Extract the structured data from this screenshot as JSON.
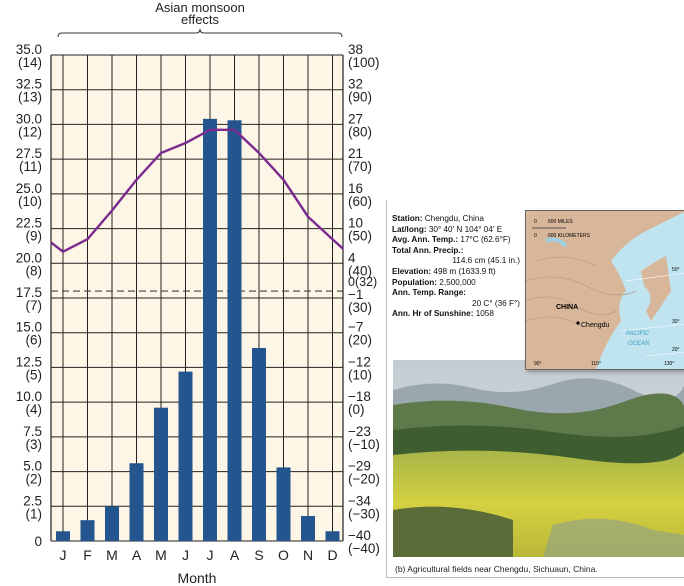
{
  "chart_data": {
    "type": "bar+line",
    "annotation": "Asian monsoon effects",
    "xlabel": "Month",
    "categories": [
      "J",
      "F",
      "M",
      "A",
      "M",
      "J",
      "J",
      "A",
      "S",
      "O",
      "N",
      "D"
    ],
    "precipitation_cm": [
      0.7,
      1.5,
      2.5,
      5.6,
      9.6,
      12.2,
      30.4,
      30.3,
      13.9,
      5.3,
      1.8,
      0.7
    ],
    "temperature_c": [
      6.3,
      8.3,
      12.9,
      17.8,
      22.1,
      23.7,
      25.8,
      25.8,
      22.1,
      17.8,
      11.9,
      8.3
    ],
    "left_axis": {
      "range_cm": [
        0,
        35
      ],
      "ticks": [
        {
          "cm": "0",
          "in": ""
        },
        {
          "cm": "2.5",
          "in": "(1)"
        },
        {
          "cm": "5.0",
          "in": "(2)"
        },
        {
          "cm": "7.5",
          "in": "(3)"
        },
        {
          "cm": "10.0",
          "in": "(4)"
        },
        {
          "cm": "12.5",
          "in": "(5)"
        },
        {
          "cm": "15.0",
          "in": "(6)"
        },
        {
          "cm": "17.5",
          "in": "(7)"
        },
        {
          "cm": "20.0",
          "in": "(8)"
        },
        {
          "cm": "22.5",
          "in": "(9)"
        },
        {
          "cm": "25.0",
          "in": "(10)"
        },
        {
          "cm": "27.5",
          "in": "(11)"
        },
        {
          "cm": "30.0",
          "in": "(12)"
        },
        {
          "cm": "32.5",
          "in": "(13)"
        },
        {
          "cm": "35.0",
          "in": "(14)"
        }
      ]
    },
    "right_axis": {
      "range_f": [
        -40,
        100
      ],
      "ticks": [
        {
          "c": "−40",
          "f": "(−40)"
        },
        {
          "c": "−34",
          "f": "(−30)"
        },
        {
          "c": "−29",
          "f": "(−20)"
        },
        {
          "c": "−23",
          "f": "(−10)"
        },
        {
          "c": "−18",
          "f": "(0)"
        },
        {
          "c": "−12",
          "f": "(10)"
        },
        {
          "c": "−7",
          "f": "(20)"
        },
        {
          "c": "−1",
          "f": "(30)"
        },
        {
          "c": "4",
          "f": "(40)"
        },
        {
          "c": "10",
          "f": "(50)"
        },
        {
          "c": "16",
          "f": "(60)"
        },
        {
          "c": "21",
          "f": "(70)"
        },
        {
          "c": "27",
          "f": "(80)"
        },
        {
          "c": "32",
          "f": "(90)"
        },
        {
          "c": "38",
          "f": "(100)"
        }
      ],
      "freezing_label": "0(32)"
    },
    "colors": {
      "bars": "#25558f",
      "temperature_line": "#7b2a8e",
      "plot_bg": "#fdf5e6",
      "grid": "#222222"
    }
  },
  "station": {
    "station_label": "Station:",
    "station": " Chengdu, China",
    "latlong_label": "Lat/long:",
    "latlong": " 30° 40′ N 104° 04′ E",
    "avgtemp_label": "Avg. Ann. Temp.:",
    "avgtemp": " 17°C (62.6°F)",
    "precip_label": "Total Ann. Precip.:",
    "precip": "114.6 cm (45.1 in.)",
    "elev_label": "Elevation:",
    "elev": " 498 m (1633.9 ft)",
    "pop_label": "Population:",
    "pop": " 2,500,000",
    "range_label": "Ann. Temp. Range:",
    "range": "20 C° (36 F°)",
    "sun_label": "Ann. Hr of Sunshine:",
    "sun": " 1058"
  },
  "map": {
    "scale_miles": "600 MILES",
    "scale_km": "600 KILOMETERS",
    "zero": "0",
    "country": "CHINA",
    "city": "Chengdu",
    "ocean1": "PACIFIC",
    "ocean2": "OCEAN",
    "lat50": "50°",
    "lat30": "30°",
    "lat20": "20°",
    "lon90": "90°",
    "lon110": "110°",
    "lon130": "130°"
  },
  "caption": "(b) Agricultural fields near Chengdu, Sichuaun, China."
}
